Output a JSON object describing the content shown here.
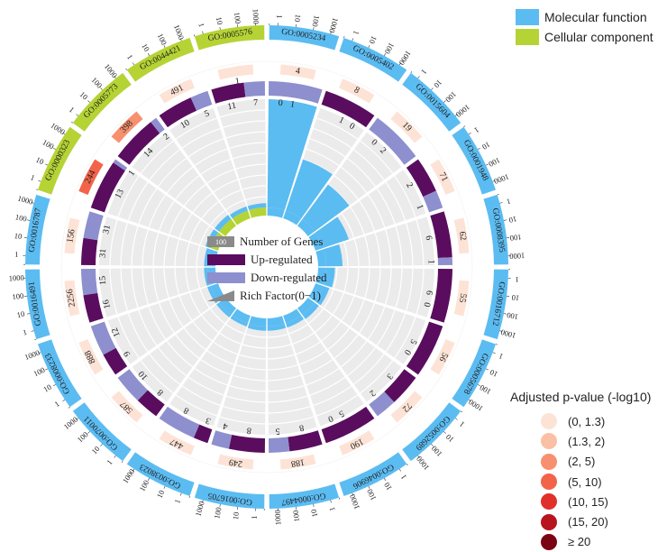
{
  "chart_data": {
    "type": "circos",
    "terms": [
      {
        "id": "GO:0005234",
        "category": "Molecular function",
        "total": 4,
        "up": 0,
        "down": 1,
        "rich": 1.0,
        "p": "(0, 1.3)"
      },
      {
        "id": "GO:0005402",
        "category": "Molecular function",
        "total": 8,
        "up": 1,
        "down": 0,
        "rich": 0.5,
        "p": "(0, 1.3)"
      },
      {
        "id": "GO:0015604",
        "category": "Molecular function",
        "total": 19,
        "up": 0,
        "down": 2,
        "rich": 0.4,
        "p": "(0, 1.3)"
      },
      {
        "id": "GO:0001948",
        "category": "Molecular function",
        "total": 71,
        "up": 2,
        "down": 1,
        "rich": 0.25,
        "p": "(0, 1.3)"
      },
      {
        "id": "GO:0008395",
        "category": "Molecular function",
        "total": 62,
        "up": 6,
        "down": 1,
        "rich": 0.15,
        "p": "(0, 1.3)"
      },
      {
        "id": "GO:0016712",
        "category": "Molecular function",
        "total": 55,
        "up": 6,
        "down": 0,
        "rich": 0.08,
        "p": "(0, 1.3)"
      },
      {
        "id": "GO:0005678",
        "category": "Molecular function",
        "total": 56,
        "up": 5,
        "down": 0,
        "rich": 0.06,
        "p": "(0, 1.3)"
      },
      {
        "id": "GO:0052689",
        "category": "Molecular function",
        "total": 72,
        "up": 3,
        "down": 2,
        "rich": 0.05,
        "p": "(0, 1.3)"
      },
      {
        "id": "GO:0046906",
        "category": "Molecular function",
        "total": 190,
        "up": 5,
        "down": 0,
        "rich": 0.04,
        "p": "(0, 1.3)"
      },
      {
        "id": "GO:0004497",
        "category": "Molecular function",
        "total": 188,
        "up": 8,
        "down": 5,
        "rich": 0.04,
        "p": "(0, 1.3)"
      },
      {
        "id": "GO:0016705",
        "category": "Molecular function",
        "total": 249,
        "up": 8,
        "down": 4,
        "rich": 0.04,
        "p": "(0, 1.3)"
      },
      {
        "id": "GO:0038023",
        "category": "Molecular function",
        "total": 447,
        "up": 3,
        "down": 8,
        "rich": 0.03,
        "p": "(0, 1.3)"
      },
      {
        "id": "GO:0070011",
        "category": "Molecular function",
        "total": 587,
        "up": 8,
        "down": 10,
        "rich": 0.03,
        "p": "(0, 1.3)"
      },
      {
        "id": "GO:0008233",
        "category": "Molecular function",
        "total": 888,
        "up": 9,
        "down": 12,
        "rich": 0.03,
        "p": "(0, 1.3)"
      },
      {
        "id": "GO:0016491",
        "category": "Molecular function",
        "total": 2256,
        "up": 16,
        "down": 15,
        "rich": 0.03,
        "p": "(0, 1.3)"
      },
      {
        "id": "GO:0016787",
        "category": "Molecular function",
        "total": 156,
        "up": 31,
        "down": 31,
        "rich": 0.03,
        "p": "(0, 1.3)"
      },
      {
        "id": "GO:0000323",
        "category": "Cellular component",
        "total": 244,
        "up": 13,
        "down": 1,
        "rich": 0.05,
        "p": "(5, 10)"
      },
      {
        "id": "GO:0005773",
        "category": "Cellular component",
        "total": 398,
        "up": 14,
        "down": 2,
        "rich": 0.05,
        "p": "(2, 5)"
      },
      {
        "id": "GO:0044421",
        "category": "Cellular component",
        "total": 491,
        "up": 10,
        "down": 5,
        "rich": 0.04,
        "p": "(0, 1.3)"
      },
      {
        "id": "GO:0005576",
        "category": "Cellular component",
        "total": "",
        "up": 11,
        "down": 7,
        "rich": 0.04,
        "p": "(0, 1.3)"
      }
    ],
    "scale_ticks": [
      "1",
      "10",
      "100",
      "1000"
    ],
    "center_legend": [
      {
        "label": "Number of Genes",
        "key": "genes",
        "sample": "100"
      },
      {
        "label": "Up-regulated",
        "key": "up"
      },
      {
        "label": "Down-regulated",
        "key": "down"
      },
      {
        "label": "Rich Factor(0−1)",
        "key": "rich"
      }
    ],
    "category_legend": [
      {
        "label": "Molecular function",
        "color": "#5bbcf2"
      },
      {
        "label": "Cellular component",
        "color": "#b5d334"
      }
    ],
    "pvalue_legend": {
      "title": "Adjusted p-value (-log10)",
      "items": [
        {
          "label": "(0, 1.3)",
          "color": "#fde3d6"
        },
        {
          "label": "(1.3, 2)",
          "color": "#fbbfa6"
        },
        {
          "label": "(2, 5)",
          "color": "#f7906e"
        },
        {
          "label": "(5, 10)",
          "color": "#f2634a"
        },
        {
          "label": "(10, 15)",
          "color": "#e0302a"
        },
        {
          "label": "(15, 20)",
          "color": "#b8141f"
        },
        {
          "label": "≥ 20",
          "color": "#7a0414"
        }
      ]
    },
    "colors": {
      "up": "#5a0d5e",
      "down": "#8e8fce",
      "rich": "#5bbcf2",
      "track_bg": "#ebebeb",
      "ring_lines": "#ffffff"
    }
  }
}
